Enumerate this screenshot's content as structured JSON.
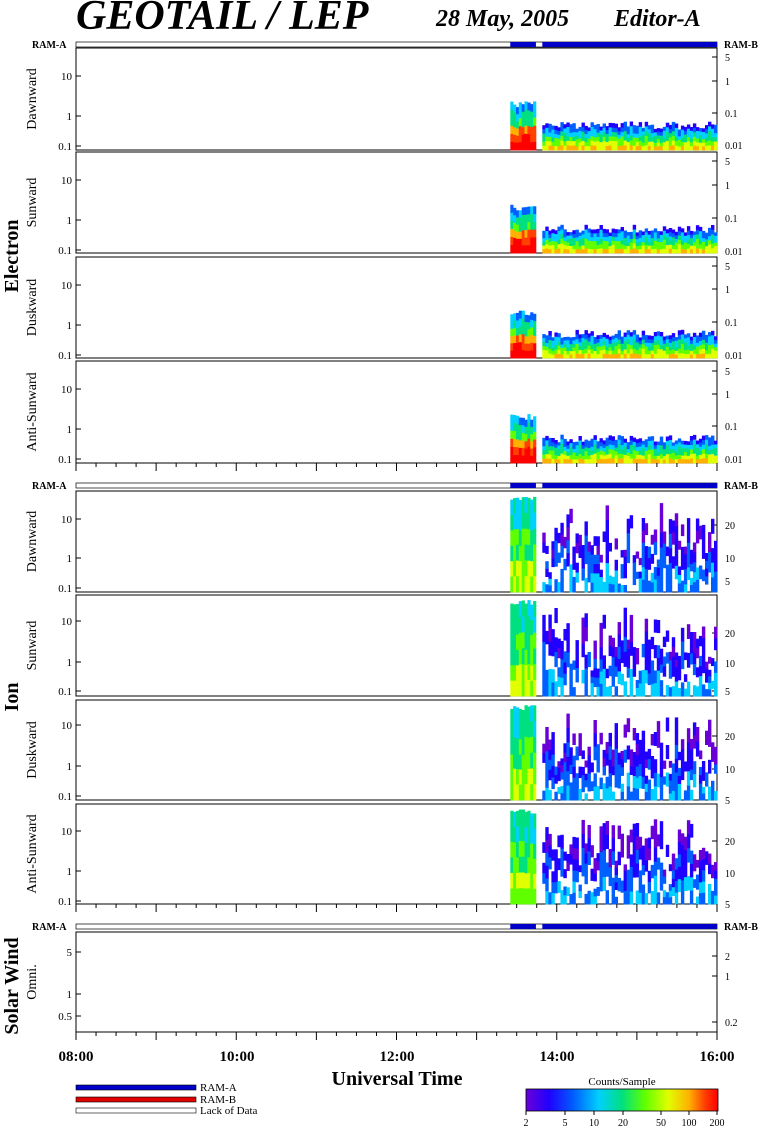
{
  "header": {
    "instrument": "GEOTAIL / LEP",
    "date": "28 May, 2005",
    "editor": "Editor-A"
  },
  "groups": {
    "electron": "Electron",
    "ion": "Ion",
    "solar_wind": "Solar Wind"
  },
  "mode_bar": {
    "left_label": "RAM-A",
    "right_label": "RAM-B"
  },
  "colors": {
    "ram_a": "#0000c8",
    "ram_b": "#e00000",
    "no_data": "#ffffff",
    "colorscale": [
      "#6a00d8",
      "#2000ff",
      "#0060ff",
      "#00d0ff",
      "#00e080",
      "#60ff00",
      "#e0ff00",
      "#ffb000",
      "#ff4000",
      "#ff0000"
    ]
  },
  "mode_intervals": [
    {
      "start": 13.42,
      "end": 13.74,
      "mode": "RAM-A"
    },
    {
      "start": 13.74,
      "end": 13.82,
      "mode": "none"
    },
    {
      "start": 13.82,
      "end": 16.0,
      "mode": "RAM-A"
    }
  ],
  "xaxis": {
    "title": "Universal Time",
    "ticks": [
      "08:00",
      "10:00",
      "12:00",
      "14:00",
      "16:00"
    ]
  },
  "legend": {
    "ram_a": "RAM-A",
    "ram_b": "RAM-B",
    "lack": "Lack of Data"
  },
  "colorbar": {
    "title": "Counts/Sample",
    "ticks": [
      "2",
      "5",
      "10",
      "20",
      "50",
      "100",
      "200"
    ]
  },
  "chart_data": {
    "type": "heatmap",
    "xlim": [
      8,
      16
    ],
    "x_units": "hours UT",
    "colorscale_range": [
      2,
      200
    ],
    "colorscale_log": true,
    "panels": [
      {
        "group": "Electron",
        "ylabel": "Dawnward",
        "yscale": "log",
        "ylim": [
          0.08,
          40
        ],
        "yticks_left": [
          "10",
          "1",
          "0.1"
        ],
        "yticks_right": [
          "5",
          "1",
          "0.1",
          "0.01"
        ],
        "segments": [
          {
            "t0": 13.42,
            "t1": 13.74,
            "top": 2.5,
            "peak": "orange"
          },
          {
            "t0": 13.82,
            "t1": 16.0,
            "top": 0.7,
            "peak": "green"
          }
        ]
      },
      {
        "group": "Electron",
        "ylabel": "Sunward",
        "yscale": "log",
        "ylim": [
          0.08,
          40
        ],
        "yticks_left": [
          "10",
          "1",
          "0.1"
        ],
        "yticks_right": [
          "5",
          "1",
          "0.1",
          "0.01"
        ],
        "segments": [
          {
            "t0": 13.42,
            "t1": 13.74,
            "top": 2.5,
            "peak": "orange"
          },
          {
            "t0": 13.82,
            "t1": 16.0,
            "top": 0.7,
            "peak": "green"
          }
        ]
      },
      {
        "group": "Electron",
        "ylabel": "Duskward",
        "yscale": "log",
        "ylim": [
          0.08,
          40
        ],
        "yticks_left": [
          "10",
          "1",
          "0.1"
        ],
        "yticks_right": [
          "5",
          "1",
          "0.1",
          "0.01"
        ],
        "segments": [
          {
            "t0": 13.42,
            "t1": 13.74,
            "top": 2.5,
            "peak": "orange"
          },
          {
            "t0": 13.82,
            "t1": 16.0,
            "top": 0.7,
            "peak": "green"
          }
        ]
      },
      {
        "group": "Electron",
        "ylabel": "Anti-Sunward",
        "yscale": "log",
        "ylim": [
          0.08,
          40
        ],
        "yticks_left": [
          "10",
          "1",
          "0.1"
        ],
        "yticks_right": [
          "5",
          "1",
          "0.1",
          "0.01"
        ],
        "segments": [
          {
            "t0": 13.42,
            "t1": 13.74,
            "top": 2.5,
            "peak": "orange"
          },
          {
            "t0": 13.82,
            "t1": 16.0,
            "top": 0.7,
            "peak": "green"
          }
        ]
      },
      {
        "group": "Ion",
        "ylabel": "Dawnward",
        "yscale": "log",
        "ylim": [
          0.08,
          40
        ],
        "yticks_left": [
          "10",
          "1",
          "0.1"
        ],
        "yticks_right": [
          "20",
          "10",
          "5"
        ],
        "segments": [
          {
            "t0": 13.42,
            "t1": 13.74,
            "top": 30,
            "peak": "green"
          },
          {
            "t0": 13.82,
            "t1": 16.0,
            "top": 20,
            "peak": "blue"
          }
        ]
      },
      {
        "group": "Ion",
        "ylabel": "Sunward",
        "yscale": "log",
        "ylim": [
          0.08,
          40
        ],
        "yticks_left": [
          "10",
          "1",
          "0.1"
        ],
        "yticks_right": [
          "20",
          "10",
          "5"
        ],
        "segments": [
          {
            "t0": 13.42,
            "t1": 13.74,
            "top": 30,
            "peak": "green"
          },
          {
            "t0": 13.82,
            "t1": 16.0,
            "top": 20,
            "peak": "cyan"
          }
        ]
      },
      {
        "group": "Ion",
        "ylabel": "Duskward",
        "yscale": "log",
        "ylim": [
          0.08,
          40
        ],
        "yticks_left": [
          "10",
          "1",
          "0.1"
        ],
        "yticks_right": [
          "20",
          "10",
          "5"
        ],
        "segments": [
          {
            "t0": 13.42,
            "t1": 13.74,
            "top": 30,
            "peak": "green"
          },
          {
            "t0": 13.82,
            "t1": 16.0,
            "top": 20,
            "peak": "blue"
          }
        ]
      },
      {
        "group": "Ion",
        "ylabel": "Anti-Sunward",
        "yscale": "log",
        "ylim": [
          0.08,
          40
        ],
        "yticks_left": [
          "10",
          "1",
          "0.1"
        ],
        "yticks_right": [
          "20",
          "10",
          "5"
        ],
        "segments": [
          {
            "t0": 13.42,
            "t1": 13.74,
            "top": 30,
            "peak": "green"
          },
          {
            "t0": 13.82,
            "t1": 16.0,
            "top": 20,
            "peak": "blue"
          }
        ]
      },
      {
        "group": "Solar Wind",
        "ylabel": "Omni.",
        "yscale": "log",
        "ylim": [
          0.2,
          8
        ],
        "yticks_left": [
          "5",
          "1",
          "0.5"
        ],
        "yticks_right": [
          "2",
          "1",
          "0.2"
        ],
        "segments": []
      }
    ]
  }
}
